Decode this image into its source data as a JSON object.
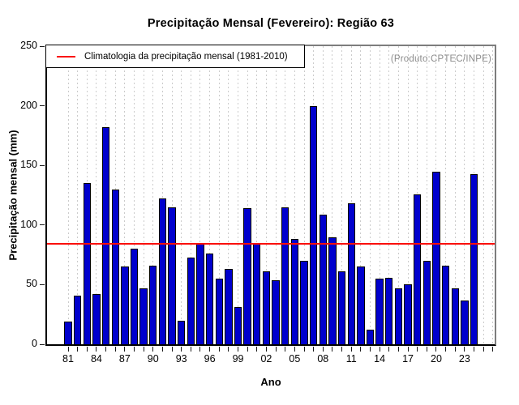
{
  "title": "Precipitação Mensal (Fevereiro): Região 63",
  "watermark": "(Produto:CPTEC/INPE)",
  "legend": {
    "label": "Climatologia da precipitação mensal (1981-2010)",
    "line_color": "#ff0000"
  },
  "colors": {
    "bar_fill": "#0000cd",
    "bar_border": "#000000",
    "climatology_line": "#ff0000",
    "gridline": "#cbcbcb",
    "watermark_text": "#8c8c8c"
  },
  "chart_data": {
    "type": "bar",
    "title": "Precipitação Mensal (Fevereiro): Região 63",
    "xlabel": "Ano",
    "ylabel": "Precipitação mensal (mm)",
    "ylim": [
      0,
      250
    ],
    "yticks": [
      0,
      50,
      100,
      150,
      200,
      250
    ],
    "grid": "vertical-dashed",
    "legend_position": "top-left",
    "years": [
      1981,
      1982,
      1983,
      1984,
      1985,
      1986,
      1987,
      1988,
      1989,
      1990,
      1991,
      1992,
      1993,
      1994,
      1995,
      1996,
      1997,
      1998,
      1999,
      2000,
      2001,
      2002,
      2003,
      2004,
      2005,
      2006,
      2007,
      2008,
      2009,
      2010,
      2011,
      2012,
      2013,
      2014,
      2015,
      2016,
      2017,
      2018,
      2019,
      2020,
      2021,
      2022,
      2023,
      2024
    ],
    "values": [
      19,
      41,
      135,
      42,
      182,
      130,
      65,
      80,
      47,
      66,
      122,
      115,
      20,
      73,
      85,
      76,
      55,
      63,
      31,
      114,
      85,
      61,
      54,
      115,
      88,
      70,
      200,
      109,
      90,
      61,
      118,
      65,
      12,
      55,
      56,
      47,
      50,
      126,
      70,
      145,
      66,
      47,
      37,
      143
    ],
    "xtick_labels": [
      "81",
      "84",
      "87",
      "90",
      "93",
      "96",
      "99",
      "02",
      "05",
      "08",
      "11",
      "14",
      "17",
      "20",
      "23"
    ],
    "xtick_label_step": 3,
    "climatology_value": 84,
    "climatology_label": "Climatologia da precipitação mensal (1981-2010)"
  }
}
